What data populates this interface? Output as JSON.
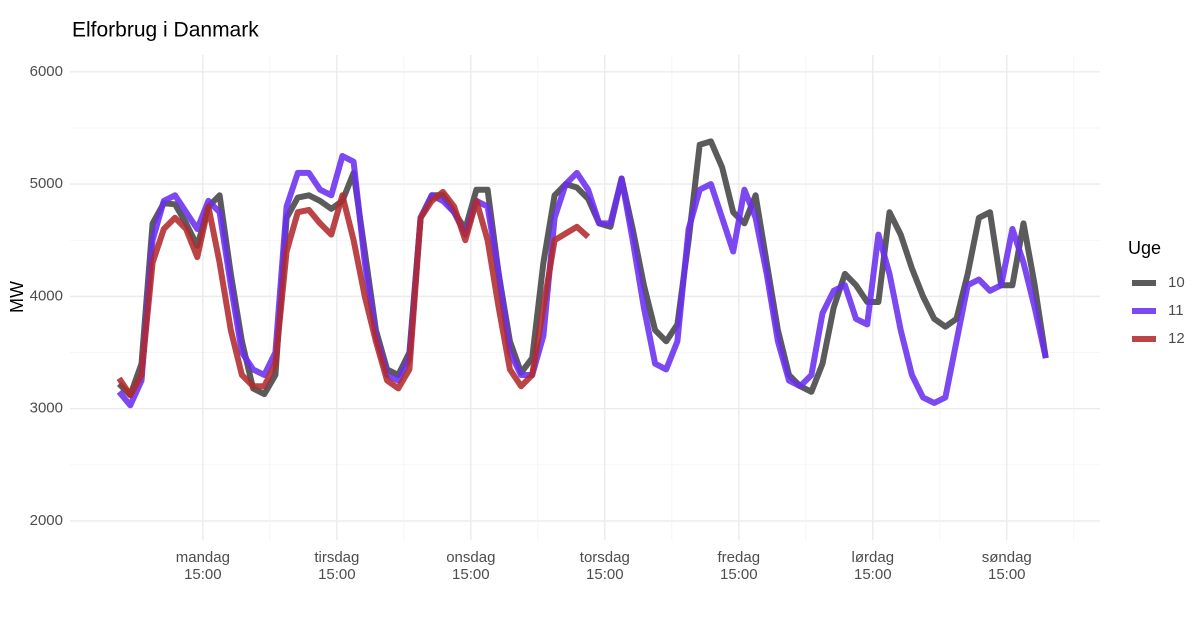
{
  "chart_data": {
    "type": "line",
    "title": "Elforbrug i Danmark",
    "y_label": "MW",
    "legend_title": "Uge",
    "x": [
      0,
      2,
      4,
      6,
      8,
      10,
      12,
      14,
      16,
      18,
      20,
      22,
      24,
      26,
      28,
      30,
      32,
      34,
      36,
      38,
      40,
      42,
      44,
      46,
      48,
      50,
      52,
      54,
      56,
      58,
      60,
      62,
      64,
      66,
      68,
      70,
      72,
      74,
      76,
      78,
      80,
      82,
      84,
      86,
      88,
      90,
      92,
      94,
      96,
      98,
      100,
      102,
      104,
      106,
      108,
      110,
      112,
      114,
      116,
      118,
      120,
      122,
      124,
      126,
      128,
      130,
      132,
      134,
      136,
      138,
      140,
      142,
      144,
      146,
      148,
      150,
      152,
      154,
      156,
      158,
      160,
      162,
      164,
      166
    ],
    "series": [
      {
        "name": "10",
        "color": "#444444",
        "values": [
          3220,
          3120,
          3400,
          4650,
          4830,
          4820,
          4650,
          4450,
          4800,
          4900,
          4200,
          3600,
          3180,
          3130,
          3300,
          4700,
          4880,
          4900,
          4850,
          4780,
          4850,
          5100,
          4400,
          3700,
          3350,
          3300,
          3500,
          4700,
          4900,
          4900,
          4750,
          4600,
          4950,
          4950,
          4200,
          3600,
          3320,
          3450,
          4300,
          4900,
          5000,
          4970,
          4870,
          4650,
          4620,
          5050,
          4600,
          4100,
          3700,
          3600,
          3750,
          4500,
          5350,
          5380,
          5150,
          4750,
          4650,
          4900,
          4300,
          3700,
          3300,
          3200,
          3150,
          3400,
          3900,
          4200,
          4100,
          3950,
          3950,
          4750,
          4550,
          4250,
          4000,
          3800,
          3730,
          3800,
          4200,
          4700,
          4750,
          4100,
          4100,
          4650,
          4100,
          3450
        ]
      },
      {
        "name": "11",
        "color": "#6a2ff0",
        "values": [
          3150,
          3030,
          3250,
          4500,
          4850,
          4900,
          4750,
          4600,
          4850,
          4750,
          4100,
          3500,
          3350,
          3300,
          3500,
          4800,
          5100,
          5100,
          4950,
          4900,
          5250,
          5200,
          4300,
          3650,
          3300,
          3250,
          3450,
          4700,
          4900,
          4850,
          4750,
          4550,
          4850,
          4800,
          4200,
          3500,
          3300,
          3300,
          3650,
          4700,
          5000,
          5100,
          4950,
          4650,
          4650,
          5050,
          4500,
          3900,
          3400,
          3350,
          3600,
          4600,
          4950,
          5000,
          4700,
          4400,
          4950,
          4700,
          4200,
          3600,
          3250,
          3200,
          3300,
          3850,
          4050,
          4100,
          3800,
          3750,
          4550,
          4200,
          3700,
          3300,
          3100,
          3050,
          3100,
          3600,
          4100,
          4150,
          4050,
          4100,
          4600,
          4300,
          3900,
          3450
        ]
      },
      {
        "name": "12",
        "color": "#b22a2e",
        "values": [
          3270,
          3120,
          3300,
          4300,
          4600,
          4700,
          4600,
          4350,
          4800,
          4300,
          3700,
          3300,
          3200,
          3200,
          3400,
          4400,
          4750,
          4770,
          4650,
          4550,
          4900,
          4500,
          4000,
          3600,
          3250,
          3180,
          3350,
          4700,
          4850,
          4930,
          4800,
          4500,
          4850,
          4500,
          3900,
          3350,
          3200,
          3300,
          3900,
          4500,
          4560,
          4620,
          4530,
          null,
          null,
          null,
          null,
          null,
          null,
          null,
          null,
          null,
          null,
          null,
          null,
          null,
          null,
          null,
          null,
          null,
          null,
          null,
          null,
          null,
          null,
          null,
          null,
          null,
          null,
          null,
          null,
          null,
          null,
          null,
          null,
          null,
          null,
          null,
          null,
          null,
          null,
          null,
          null,
          null
        ]
      }
    ],
    "xlim": [
      -8.8,
      175.7
    ],
    "xticks": [
      {
        "value": 15,
        "label": "mandag\n15:00"
      },
      {
        "value": 39,
        "label": "tirsdag\n15:00"
      },
      {
        "value": 63,
        "label": "onsdag\n15:00"
      },
      {
        "value": 87,
        "label": "torsdag\n15:00"
      },
      {
        "value": 111,
        "label": "fredag\n15:00"
      },
      {
        "value": 135,
        "label": "lørdag\n15:00"
      },
      {
        "value": 159,
        "label": "søndag\n15:00"
      }
    ],
    "ylim": [
      1830,
      6150
    ],
    "yticks": [
      2000,
      3000,
      4000,
      5000,
      6000
    ],
    "grid": true,
    "legend": "right"
  }
}
